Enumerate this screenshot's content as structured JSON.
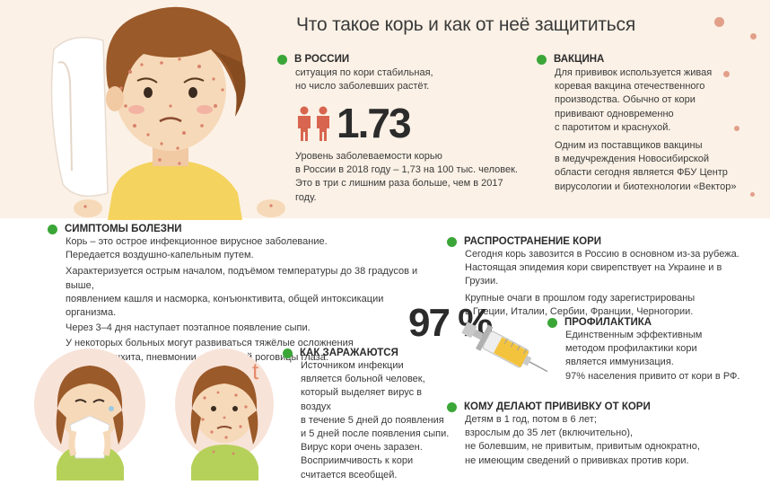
{
  "title": "Что такое корь и как от неё защититься",
  "russia": {
    "heading": "В РОССИИ",
    "text": [
      "ситуация по кори стабильная,",
      "но число заболевших растёт."
    ],
    "stat": "1.73",
    "note": [
      "Уровень заболеваемости корью",
      "в России в 2018 году – 1,73 на 100 тыс. человек.",
      "Это в три с лишним раза больше, чем в 2017 году."
    ]
  },
  "vaccine": {
    "heading": "ВАКЦИНА",
    "p1": [
      "Для прививок используется живая",
      "коревая вакцина отечественного",
      "производства. Обычно от кори",
      "прививают одновременно",
      "с паротитом и краснухой."
    ],
    "p2": [
      "Одним из поставщиков вакцины",
      "в медучреждения Новосибирской",
      "области сегодня является ФБУ Центр",
      "вирусологии и биотехнологии «Вектор»"
    ]
  },
  "symptoms": {
    "heading": "СИМПТОМЫ БОЛЕЗНИ",
    "p1": [
      "Корь – это острое инфекционное вирусное заболевание.",
      "Передается воздушно-капельным путем."
    ],
    "p2": [
      "Характеризуется острым началом, подъёмом температуры до 38 градусов и выше,",
      "появлением кашля и насморка, конъюнктивита, общей интоксикации организма."
    ],
    "p3": [
      "Через 3–4 дня наступает поэтапное появление сыпи."
    ],
    "p4": [
      "У некоторых больных могут развиваться тяжёлые осложнения",
      "в виде бронхита, пневмонии, поражений роговицы глаза."
    ]
  },
  "spread": {
    "heading": "РАСПРОСТРАНЕНИЕ КОРИ",
    "p1": [
      "Сегодня корь завозится в Россию в основном из-за рубежа.",
      "Настоящая эпидемия кори свирепствует на Украине и в Грузии."
    ],
    "p2": [
      "Крупные очаги в прошлом году зарегистрированы",
      "в Греции, Италии, Сербии, Франции, Черногории."
    ]
  },
  "percent": "97 %",
  "thermo": "t",
  "prevention": {
    "heading": "ПРОФИЛАКТИКА",
    "p1": [
      "Единственным эффективным",
      "методом профилактики кори",
      "является иммунизация."
    ],
    "p2": [
      "97% населения привито от кори в РФ."
    ]
  },
  "infection": {
    "heading": "КАК ЗАРАЖАЮТСЯ",
    "p1": [
      "Источником инфекции",
      "является больной человек,",
      "который выделяет вирус в воздух",
      "в течение 5 дней до появления",
      "и 5 дней после появления сыпи.",
      "Вирус кори очень заразен.",
      "Восприимчивость к кори",
      "считается всеобщей."
    ]
  },
  "who": {
    "heading": "КОМУ ДЕЛАЮТ ПРИВИВКУ ОТ КОРИ",
    "p1": [
      "Детям в 1 год, потом в 6 лет;",
      "взрослым до 35 лет (включительно),",
      "не болевшим, не привитым, привитым однократно,",
      "не имеющим сведений о прививках против кори."
    ]
  },
  "colors": {
    "accent": "#3aa637",
    "band": "#fbf1e6",
    "rash": "#d9836b",
    "hair": "#9b5a2a",
    "skin": "#f6d9b8",
    "shirt_yellow": "#f4d35e",
    "shirt_green": "#b6d15a",
    "figure": "#d8654f"
  }
}
